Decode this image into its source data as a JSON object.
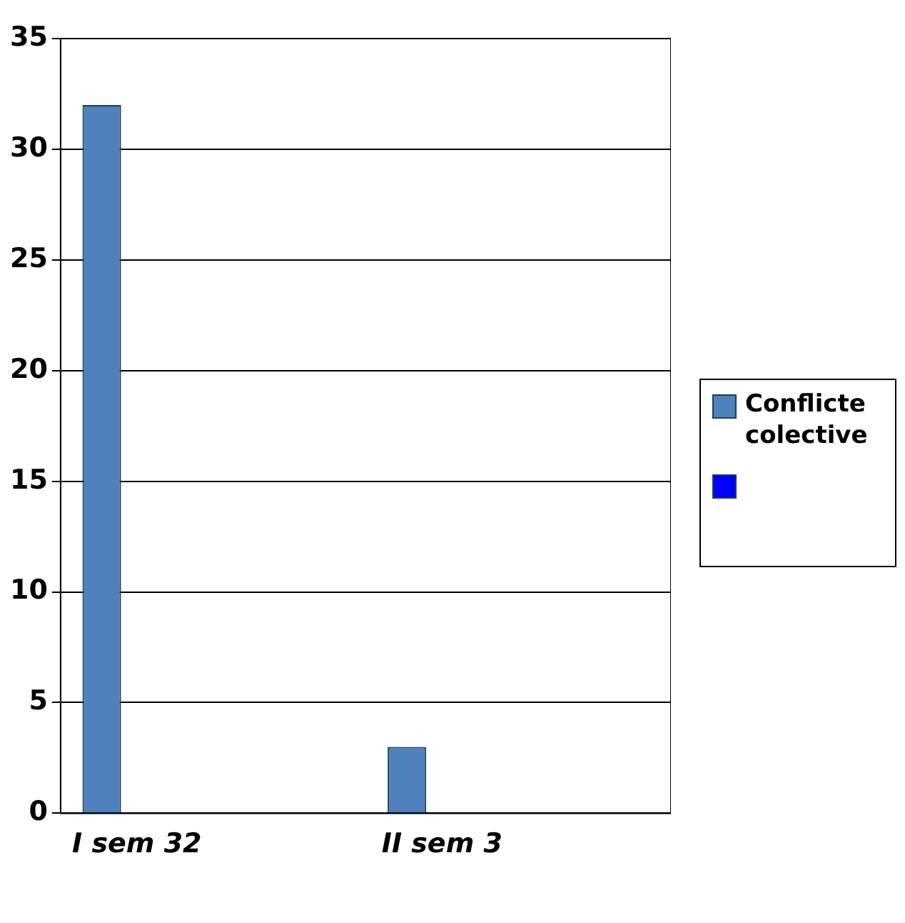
{
  "chart_data": {
    "type": "bar",
    "categories": [
      "I sem 32",
      null,
      "II sem 3",
      null
    ],
    "series": [
      {
        "name": "Conflicte colective",
        "color": "#4f81bd",
        "values": [
          32,
          null,
          3,
          null
        ]
      },
      {
        "color": "#0000ff",
        "values": [
          null,
          null,
          null,
          null
        ]
      }
    ],
    "ylim": [
      0,
      35
    ],
    "yticks": [
      0,
      5,
      10,
      15,
      20,
      25,
      30,
      35
    ],
    "grid": "y",
    "legend": "right"
  }
}
